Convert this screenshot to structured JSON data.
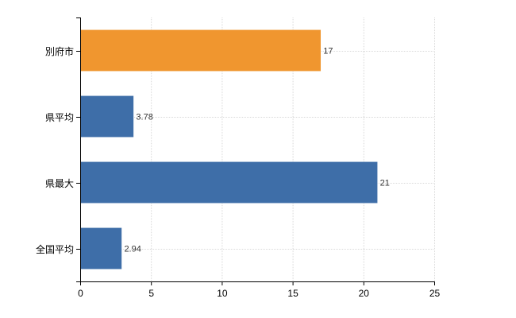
{
  "chart_data": {
    "type": "bar",
    "orientation": "horizontal",
    "categories": [
      "別府市",
      "県平均",
      "県最大",
      "全国平均"
    ],
    "values": [
      17,
      3.78,
      21,
      2.94
    ],
    "data_labels": [
      "17",
      "3.78",
      "21",
      "2.94"
    ],
    "bar_colors": [
      "#f0962f",
      "#3e6ea8",
      "#3e6ea8",
      "#3e6ea8"
    ],
    "title": "",
    "xlabel": "",
    "ylabel": "",
    "xlim": [
      0,
      25
    ],
    "x_ticks": [
      0,
      5,
      10,
      15,
      20,
      25
    ],
    "grid": true
  }
}
